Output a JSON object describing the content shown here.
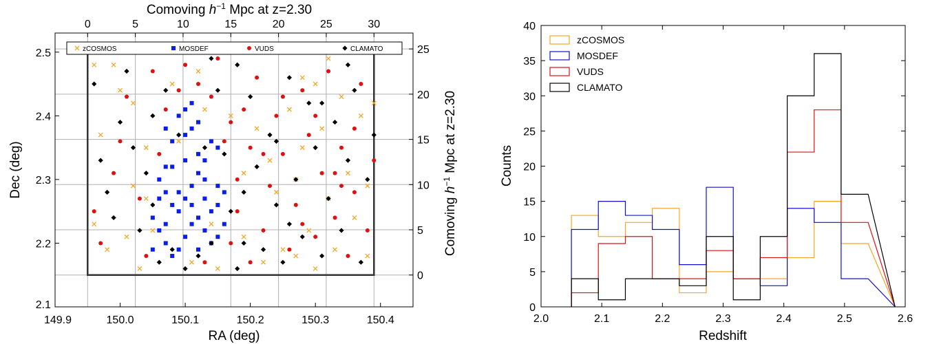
{
  "chart_data": [
    {
      "type": "scatter",
      "xlabel": "RA (deg)",
      "ylabel": "Dec (deg)",
      "top_label": "Comoving h−1 Mpc at z=2.30",
      "right_label": "Comoving h−1 Mpc at z=2.30",
      "xlim": [
        149.9,
        150.45
      ],
      "ylim": [
        2.1,
        2.53
      ],
      "x_ticks": [
        "149.9",
        "150.0",
        "150.1",
        "150.2",
        "150.3",
        "150.4"
      ],
      "y_ticks": [
        "2.1",
        "2.2",
        "2.3",
        "2.4",
        "2.5"
      ],
      "top_ticks": [
        "0",
        "5",
        "10",
        "15",
        "20",
        "25",
        "30"
      ],
      "right_ticks": [
        "0",
        "5",
        "10",
        "15",
        "20",
        "25"
      ],
      "field_box": {
        "ra": [
          149.95,
          150.39
        ],
        "dec": [
          2.15,
          2.505
        ]
      },
      "grid": true,
      "legend_position": "top",
      "series": [
        {
          "name": "zCOSMOS",
          "marker": "x",
          "color": "#f5a623",
          "points": [
            [
              149.96,
              2.48
            ],
            [
              149.97,
              2.37
            ],
            [
              149.96,
              2.23
            ],
            [
              149.98,
              2.19
            ],
            [
              149.99,
              2.48
            ],
            [
              150.0,
              2.44
            ],
            [
              150.01,
              2.21
            ],
            [
              150.02,
              2.29
            ],
            [
              150.02,
              2.42
            ],
            [
              150.04,
              2.35
            ],
            [
              150.03,
              2.16
            ],
            [
              150.05,
              2.22
            ],
            [
              150.06,
              2.5
            ],
            [
              150.08,
              2.45
            ],
            [
              150.09,
              2.36
            ],
            [
              150.11,
              2.17
            ],
            [
              150.12,
              2.47
            ],
            [
              150.14,
              2.23
            ],
            [
              150.15,
              2.16
            ],
            [
              150.17,
              2.4
            ],
            [
              150.19,
              2.21
            ],
            [
              150.21,
              2.38
            ],
            [
              150.22,
              2.17
            ],
            [
              150.23,
              2.33
            ],
            [
              150.24,
              2.28
            ],
            [
              150.25,
              2.19
            ],
            [
              150.26,
              2.41
            ],
            [
              150.27,
              2.18
            ],
            [
              150.28,
              2.35
            ],
            [
              150.29,
              2.22
            ],
            [
              150.3,
              2.45
            ],
            [
              150.3,
              2.16
            ],
            [
              150.31,
              2.38
            ],
            [
              150.32,
              2.27
            ],
            [
              150.33,
              2.19
            ],
            [
              150.34,
              2.43
            ],
            [
              150.35,
              2.31
            ],
            [
              150.36,
              2.24
            ],
            [
              150.37,
              2.4
            ],
            [
              150.38,
              2.29
            ],
            [
              150.38,
              2.18
            ],
            [
              150.39,
              2.42
            ],
            [
              150.32,
              2.49
            ],
            [
              150.28,
              2.46
            ],
            [
              150.04,
              2.27
            ],
            [
              150.13,
              2.41
            ],
            [
              150.19,
              2.31
            ],
            [
              150.27,
              2.3
            ]
          ]
        },
        {
          "name": "MOSDEF",
          "marker": "s",
          "color": "#0a1ee6",
          "points": [
            [
              150.06,
              2.3
            ],
            [
              150.07,
              2.28
            ],
            [
              150.08,
              2.26
            ],
            [
              150.05,
              2.24
            ],
            [
              150.06,
              2.22
            ],
            [
              150.07,
              2.2
            ],
            [
              150.08,
              2.18
            ],
            [
              150.09,
              2.25
            ],
            [
              150.1,
              2.27
            ],
            [
              150.11,
              2.29
            ],
            [
              150.12,
              2.24
            ],
            [
              150.13,
              2.22
            ],
            [
              150.14,
              2.2
            ],
            [
              150.15,
              2.26
            ],
            [
              150.16,
              2.28
            ],
            [
              150.1,
              2.21
            ],
            [
              150.11,
              2.23
            ],
            [
              150.09,
              2.19
            ],
            [
              150.12,
              2.19
            ],
            [
              150.14,
              2.25
            ],
            [
              150.13,
              2.3
            ],
            [
              150.08,
              2.32
            ],
            [
              150.1,
              2.33
            ],
            [
              150.12,
              2.34
            ],
            [
              150.14,
              2.36
            ],
            [
              150.1,
              2.37
            ],
            [
              150.11,
              2.38
            ],
            [
              150.12,
              2.39
            ],
            [
              150.09,
              2.4
            ],
            [
              150.1,
              2.41
            ],
            [
              150.11,
              2.42
            ],
            [
              150.07,
              2.38
            ],
            [
              150.08,
              2.36
            ],
            [
              150.13,
              2.33
            ],
            [
              150.15,
              2.35
            ],
            [
              150.06,
              2.27
            ],
            [
              150.07,
              2.23
            ],
            [
              150.15,
              2.21
            ],
            [
              150.16,
              2.23
            ],
            [
              150.05,
              2.19
            ],
            [
              150.09,
              2.28
            ],
            [
              150.11,
              2.26
            ],
            [
              150.13,
              2.27
            ],
            [
              150.15,
              2.29
            ],
            [
              150.07,
              2.32
            ],
            [
              150.12,
              2.31
            ]
          ]
        },
        {
          "name": "VUDS",
          "marker": "o",
          "color": "#e01010",
          "points": [
            [
              149.96,
              2.25
            ],
            [
              149.97,
              2.2
            ],
            [
              149.99,
              2.31
            ],
            [
              150.0,
              2.36
            ],
            [
              150.01,
              2.43
            ],
            [
              150.03,
              2.27
            ],
            [
              150.04,
              2.18
            ],
            [
              150.05,
              2.47
            ],
            [
              150.06,
              2.34
            ],
            [
              150.07,
              2.41
            ],
            [
              150.09,
              2.44
            ],
            [
              150.1,
              2.48
            ],
            [
              150.12,
              2.45
            ],
            [
              150.14,
              2.43
            ],
            [
              150.15,
              2.49
            ],
            [
              150.17,
              2.2
            ],
            [
              150.18,
              2.3
            ],
            [
              150.18,
              2.25
            ],
            [
              150.19,
              2.41
            ],
            [
              150.2,
              2.35
            ],
            [
              150.21,
              2.46
            ],
            [
              150.22,
              2.22
            ],
            [
              150.23,
              2.29
            ],
            [
              150.24,
              2.4
            ],
            [
              150.25,
              2.34
            ],
            [
              150.26,
              2.19
            ],
            [
              150.27,
              2.26
            ],
            [
              150.28,
              2.44
            ],
            [
              150.29,
              2.37
            ],
            [
              150.3,
              2.21
            ],
            [
              150.31,
              2.31
            ],
            [
              150.32,
              2.47
            ],
            [
              150.33,
              2.24
            ],
            [
              150.34,
              2.35
            ],
            [
              150.35,
              2.18
            ],
            [
              150.36,
              2.28
            ],
            [
              150.37,
              2.45
            ],
            [
              150.38,
              2.22
            ],
            [
              150.39,
              2.33
            ],
            [
              150.16,
              2.36
            ],
            [
              150.2,
              2.17
            ],
            [
              150.25,
              2.43
            ],
            [
              150.3,
              2.4
            ],
            [
              150.34,
              2.29
            ],
            [
              150.13,
              2.17
            ],
            [
              150.17,
              2.39
            ],
            [
              150.22,
              2.34
            ],
            [
              150.28,
              2.23
            ],
            [
              150.36,
              2.38
            ],
            [
              150.33,
              2.31
            ]
          ]
        },
        {
          "name": "CLAMATO",
          "marker": "D",
          "color": "#000000",
          "points": [
            [
              149.96,
              2.45
            ],
            [
              149.97,
              2.33
            ],
            [
              149.98,
              2.28
            ],
            [
              149.99,
              2.24
            ],
            [
              150.0,
              2.39
            ],
            [
              150.01,
              2.47
            ],
            [
              150.02,
              2.35
            ],
            [
              150.03,
              2.22
            ],
            [
              150.04,
              2.31
            ],
            [
              150.05,
              2.4
            ],
            [
              150.06,
              2.17
            ],
            [
              150.07,
              2.44
            ],
            [
              150.08,
              2.19
            ],
            [
              150.09,
              2.37
            ],
            [
              150.1,
              2.16
            ],
            [
              150.12,
              2.18
            ],
            [
              150.13,
              2.35
            ],
            [
              150.14,
              2.2
            ],
            [
              150.15,
              2.44
            ],
            [
              150.16,
              2.34
            ],
            [
              150.17,
              2.25
            ],
            [
              150.18,
              2.16
            ],
            [
              150.19,
              2.28
            ],
            [
              150.2,
              2.43
            ],
            [
              150.21,
              2.32
            ],
            [
              150.22,
              2.19
            ],
            [
              150.23,
              2.37
            ],
            [
              150.24,
              2.26
            ],
            [
              150.25,
              2.17
            ],
            [
              150.26,
              2.46
            ],
            [
              150.27,
              2.3
            ],
            [
              150.28,
              2.21
            ],
            [
              150.29,
              2.42
            ],
            [
              150.3,
              2.35
            ],
            [
              150.31,
              2.18
            ],
            [
              150.32,
              2.27
            ],
            [
              150.33,
              2.39
            ],
            [
              150.34,
              2.22
            ],
            [
              150.35,
              2.33
            ],
            [
              150.36,
              2.44
            ],
            [
              150.37,
              2.17
            ],
            [
              150.38,
              2.3
            ],
            [
              150.39,
              2.37
            ],
            [
              150.14,
              2.49
            ],
            [
              150.08,
              2.5
            ],
            [
              150.35,
              2.48
            ],
            [
              150.26,
              2.23
            ],
            [
              150.19,
              2.2
            ],
            [
              150.05,
              2.26
            ],
            [
              150.31,
              2.42
            ],
            [
              150.24,
              2.36
            ],
            [
              150.18,
              2.48
            ]
          ]
        }
      ]
    },
    {
      "type": "histogram",
      "xlabel": "Redshift",
      "ylabel": "Counts",
      "xlim": [
        2.0,
        2.6
      ],
      "ylim": [
        0,
        40
      ],
      "x_ticks": [
        "2.0",
        "2.1",
        "2.2",
        "2.3",
        "2.4",
        "2.5",
        "2.6"
      ],
      "y_ticks": [
        "0",
        "5",
        "10",
        "15",
        "20",
        "25",
        "30",
        "35",
        "40"
      ],
      "bin_edges": [
        2.05,
        2.0944,
        2.1389,
        2.1833,
        2.2278,
        2.2722,
        2.3167,
        2.3611,
        2.4056,
        2.45,
        2.4944,
        2.5389
      ],
      "legend_position": "top-left",
      "series": [
        {
          "name": "zCOSMOS",
          "color": "#f5a623",
          "values": [
            13,
            10,
            12,
            14,
            2,
            5,
            4,
            4,
            7,
            15,
            9
          ]
        },
        {
          "name": "MOSDEF",
          "color": "#1010cc",
          "values": [
            11,
            15,
            13,
            11,
            6,
            17,
            4,
            3,
            14,
            12,
            4
          ]
        },
        {
          "name": "VUDS",
          "color": "#e01010",
          "values": [
            2,
            9,
            10,
            4,
            4,
            8,
            4,
            7,
            22,
            28,
            12
          ]
        },
        {
          "name": "CLAMATO",
          "color": "#000000",
          "values": [
            4,
            1,
            4,
            4,
            3,
            10,
            1,
            10,
            30,
            36,
            16
          ]
        }
      ]
    }
  ]
}
